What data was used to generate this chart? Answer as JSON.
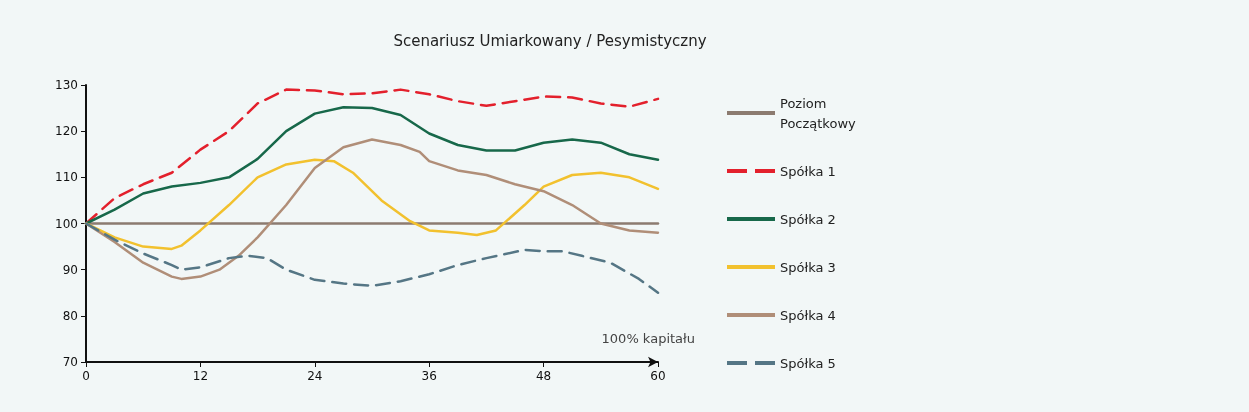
{
  "chart_data": {
    "type": "line",
    "title": "Scenariusz Umiarkowany / Pesymistyczny",
    "annotations": [
      "100% kapitału"
    ],
    "xlim": [
      0,
      60
    ],
    "xticks": [
      0,
      12,
      24,
      36,
      48,
      60
    ],
    "ylim": [
      70,
      130
    ],
    "yticks": [
      70,
      80,
      90,
      100,
      110,
      120,
      130
    ],
    "grid": false,
    "legend": "right",
    "marker": "none",
    "series": [
      {
        "name": "Poziom Początkowy",
        "color": "#8c7b70",
        "line_style": "solid",
        "x": [
          0,
          60
        ],
        "values": [
          100,
          100
        ]
      },
      {
        "name": "Spółka 1",
        "color": "#e3202c",
        "line_style": "dashed",
        "x": [
          0,
          3,
          6,
          9,
          12,
          15,
          18,
          21,
          24,
          27,
          30,
          33,
          36,
          39,
          42,
          45,
          48,
          51,
          54,
          57,
          60
        ],
        "values": [
          100,
          105.5,
          108.5,
          111,
          116,
          120,
          126,
          129,
          128.8,
          128,
          128.2,
          129,
          128,
          126.5,
          125.5,
          126.5,
          127.5,
          127.3,
          126,
          125.3,
          127
        ]
      },
      {
        "name": "Spółka 2",
        "color": "#17684a",
        "line_style": "solid",
        "x": [
          0,
          3,
          6,
          9,
          12,
          15,
          18,
          21,
          24,
          27,
          30,
          33,
          36,
          39,
          42,
          45,
          48,
          51,
          54,
          57,
          60
        ],
        "values": [
          100,
          103,
          106.5,
          108,
          108.8,
          110,
          114,
          120,
          123.8,
          125.2,
          125,
          123.5,
          119.5,
          117,
          115.8,
          115.8,
          117.5,
          118.2,
          117.5,
          115,
          113.8
        ]
      },
      {
        "name": "Spółka 3",
        "color": "#f2c12e",
        "line_style": "solid",
        "x": [
          0,
          3,
          6,
          9,
          10,
          12,
          15,
          18,
          21,
          24,
          26,
          28,
          31,
          34,
          36,
          39,
          41,
          43,
          46,
          48,
          51,
          54,
          57,
          60
        ],
        "values": [
          100,
          97,
          95,
          94.5,
          95.2,
          98.5,
          104,
          110,
          112.8,
          113.8,
          113.5,
          111,
          105,
          100.5,
          98.5,
          98,
          97.5,
          98.5,
          104,
          108,
          110.5,
          111,
          110,
          107.5
        ]
      },
      {
        "name": "Spółka 4",
        "color": "#b08e78",
        "line_style": "solid",
        "x": [
          0,
          3,
          6,
          9,
          10,
          12,
          14,
          16,
          18,
          21,
          24,
          27,
          30,
          33,
          35,
          36,
          39,
          42,
          45,
          48,
          51,
          54,
          57,
          60
        ],
        "values": [
          100,
          96,
          91.5,
          88.5,
          88,
          88.5,
          90,
          93,
          97,
          104,
          112,
          116.5,
          118.2,
          117,
          115.5,
          113.5,
          111.5,
          110.5,
          108.5,
          107,
          104,
          100,
          98.5,
          98
        ]
      },
      {
        "name": "Spółka 5",
        "color": "#557685",
        "line_style": "dashed",
        "x": [
          0,
          3,
          6,
          9,
          10,
          12,
          15,
          17,
          19,
          21,
          24,
          27,
          30,
          33,
          36,
          39,
          42,
          46,
          48,
          50,
          52,
          55,
          58,
          60
        ],
        "values": [
          100,
          96.5,
          93.5,
          91,
          90,
          90.5,
          92.5,
          93,
          92.5,
          90,
          87.8,
          87,
          86.5,
          87.5,
          89,
          91,
          92.5,
          94.3,
          94,
          94,
          93,
          91.5,
          88,
          85
        ]
      }
    ]
  }
}
